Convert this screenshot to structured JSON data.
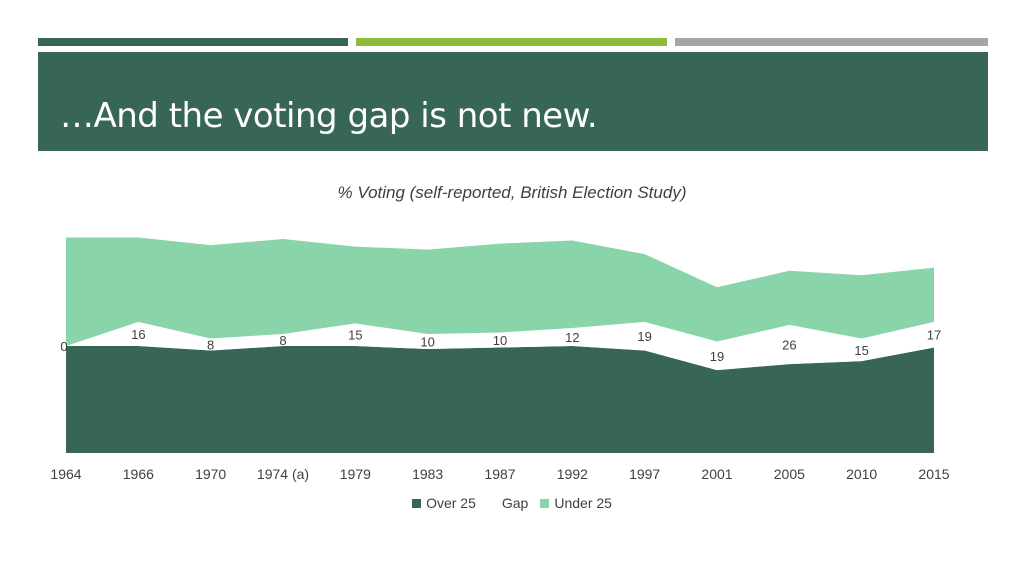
{
  "slide": {
    "title": "…And the voting gap is not new.",
    "accent_colors": [
      "#376556",
      "#8dbb3e",
      "#a5a5a5"
    ],
    "header_color": "#376556"
  },
  "chart_data": {
    "type": "area",
    "stacked": true,
    "title": "% Voting (self-reported, British Election Study)",
    "categories": [
      "1964",
      "1966",
      "1970",
      "1974 (a)",
      "1979",
      "1983",
      "1987",
      "1992",
      "1997",
      "2001",
      "2005",
      "2010",
      "2015"
    ],
    "series": [
      {
        "name": "Over 25",
        "color": "#376556",
        "values": [
          71,
          71,
          68,
          71,
          71,
          69,
          70,
          71,
          68,
          55,
          59,
          61,
          70
        ]
      },
      {
        "name": "Gap",
        "color": "#ffffff",
        "values": [
          0,
          16,
          8,
          8,
          15,
          10,
          10,
          12,
          19,
          19,
          26,
          15,
          17
        ]
      },
      {
        "name": "Under 25",
        "color": "#8ad4aa",
        "values": [
          72,
          56,
          62,
          63,
          51,
          56,
          59,
          58,
          45,
          36,
          36,
          42,
          36
        ]
      }
    ],
    "data_labels": [
      "0",
      "16",
      "8",
      "8",
      "15",
      "10",
      "10",
      "12",
      "19",
      "19",
      "26",
      "15",
      "17"
    ],
    "ylim": [
      0,
      150
    ],
    "grid": false,
    "legend_position": "bottom"
  }
}
